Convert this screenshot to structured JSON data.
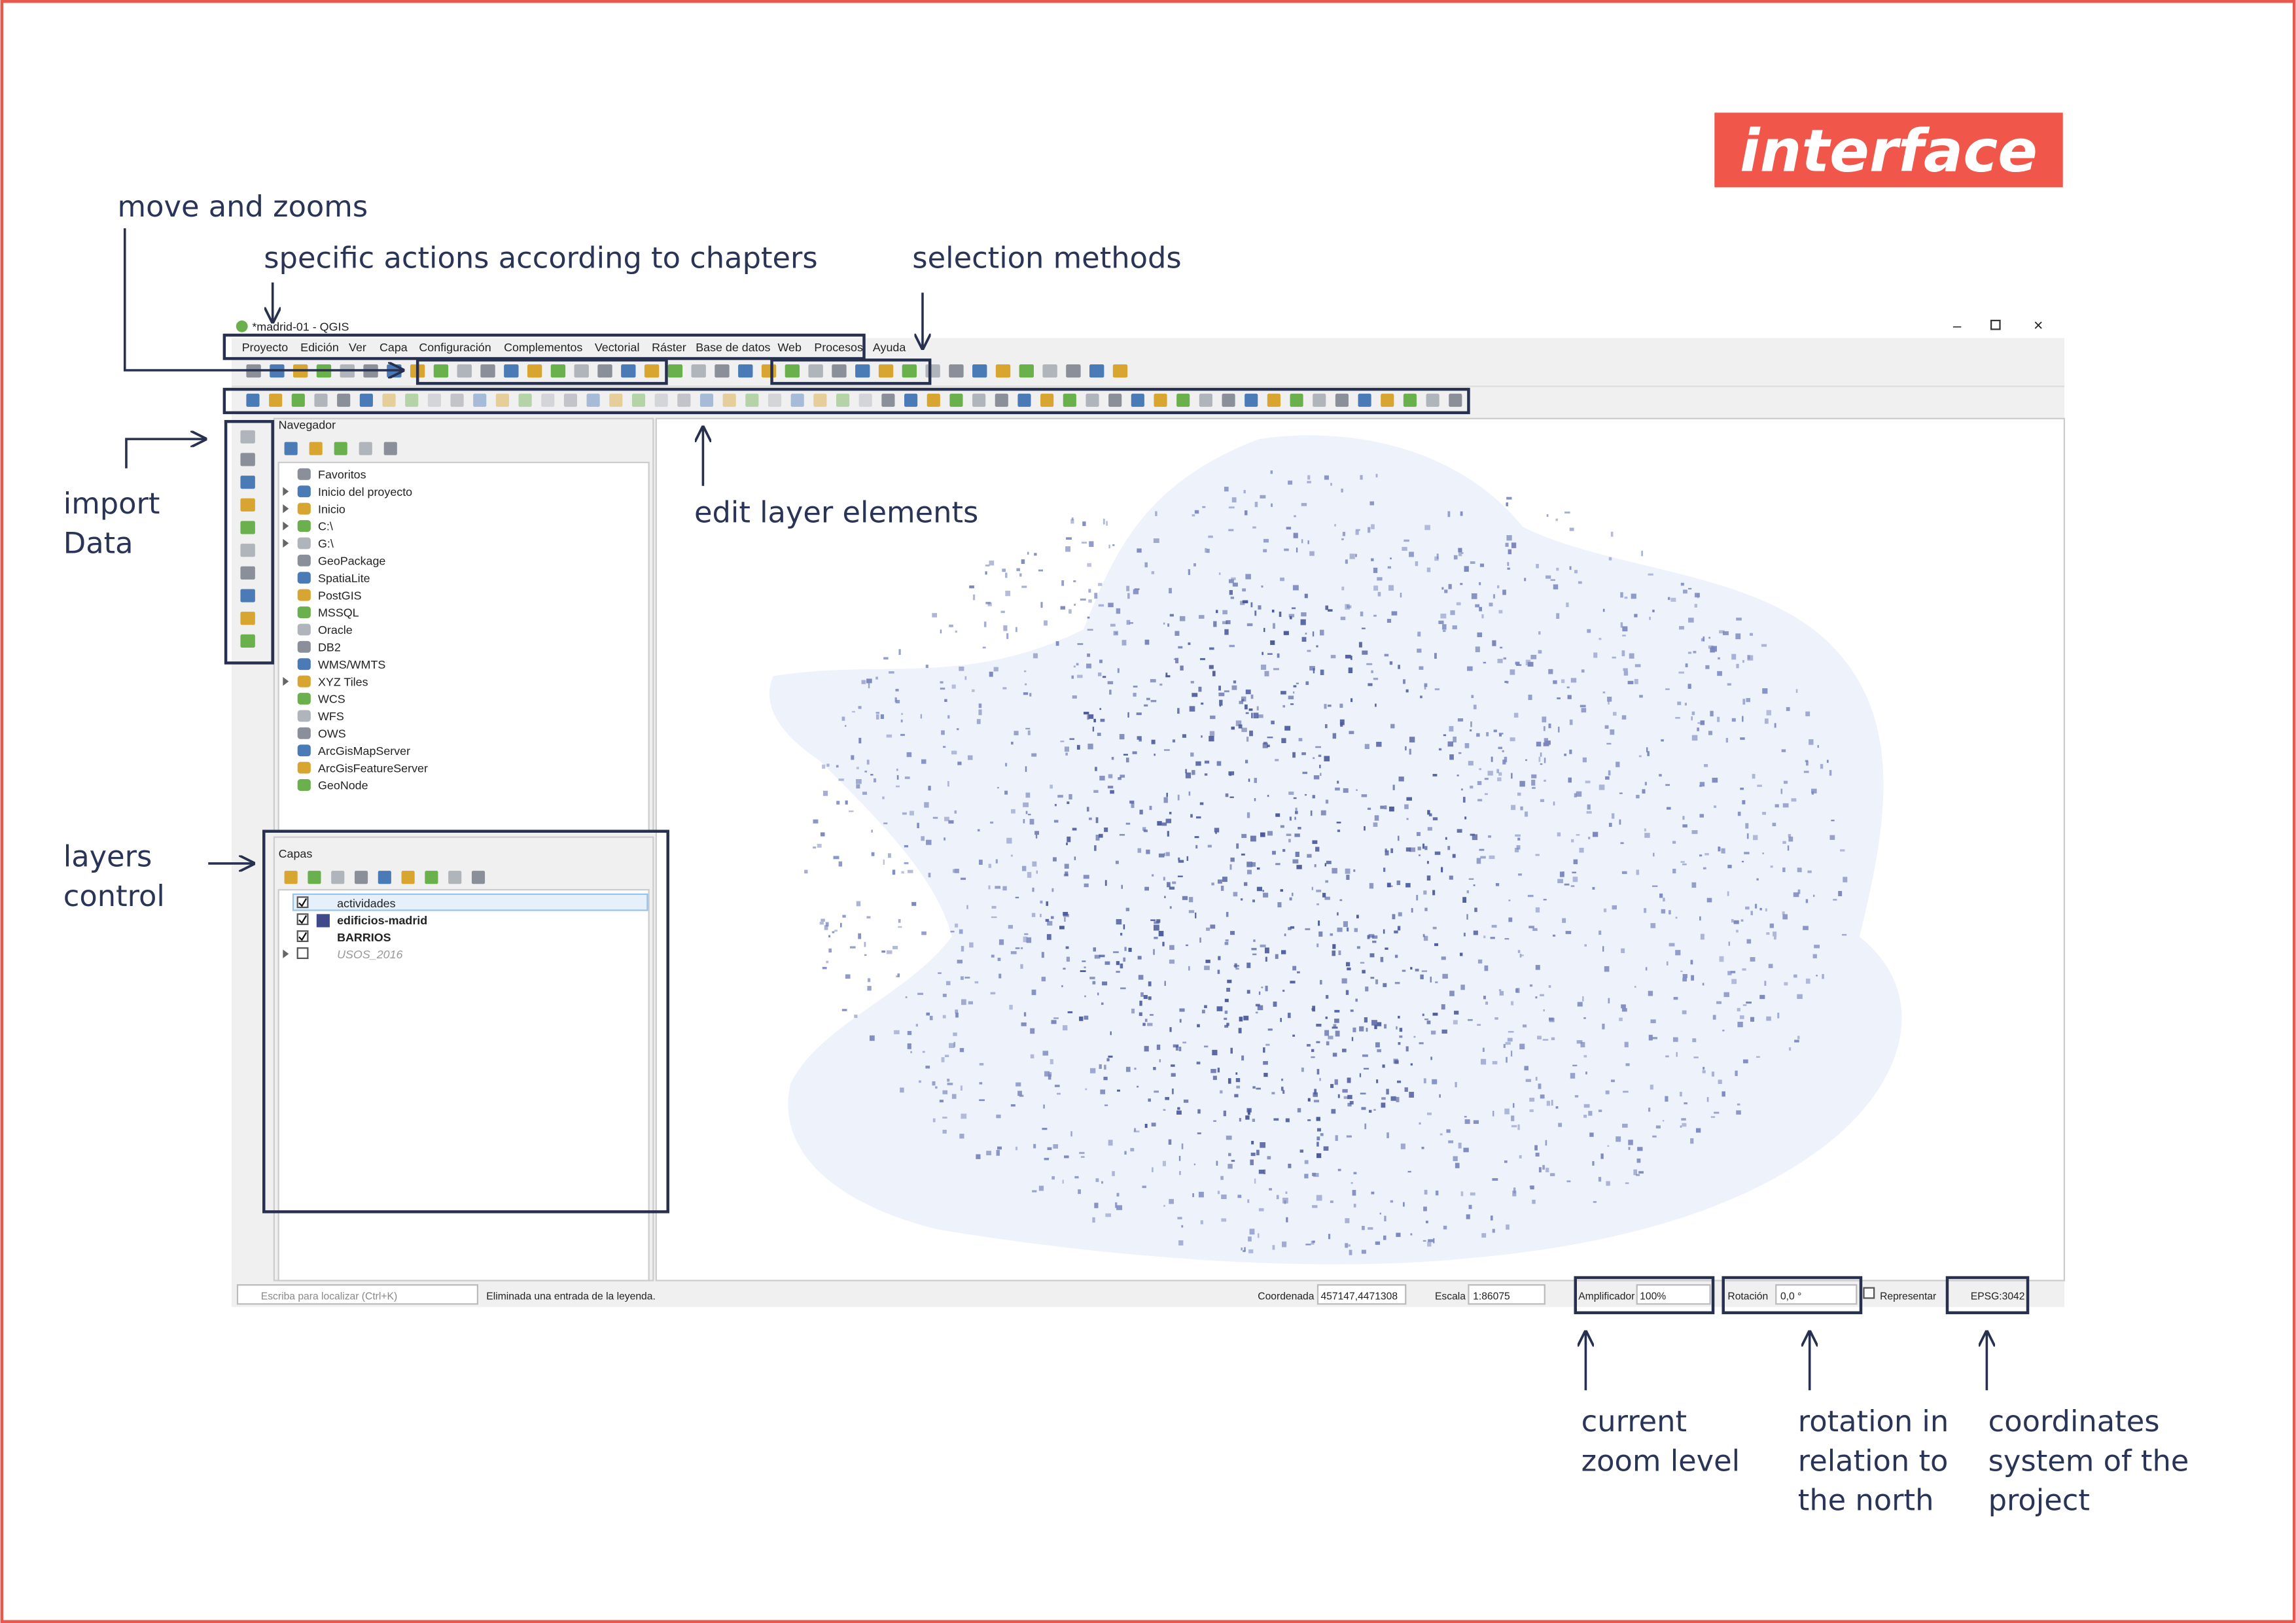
{
  "badge": "interface",
  "annotations": {
    "move_zoom": "move and zooms",
    "specific": "specific actions according to chapters",
    "selection": "selection methods",
    "import": [
      "import",
      "Data"
    ],
    "edit": "edit layer elements",
    "layers": [
      "layers",
      "control"
    ],
    "zoom_level": [
      "current",
      "zoom level"
    ],
    "rotation": [
      "rotation in",
      "relation to",
      "the north"
    ],
    "crs": [
      "coordinates",
      "system of the",
      "project"
    ]
  },
  "window": {
    "title": "*madrid-01 - QGIS",
    "menu": [
      "Proyecto",
      "Edición",
      "Ver",
      "Capa",
      "Configuración",
      "Complementos",
      "Vectorial",
      "Ráster",
      "Base de datos",
      "Web",
      "Procesos",
      "Ayuda"
    ]
  },
  "browser": {
    "title": "Navegador",
    "items": [
      "Favoritos",
      "Inicio del proyecto",
      "Inicio",
      "C:\\",
      "G:\\",
      "GeoPackage",
      "SpatiaLite",
      "PostGIS",
      "MSSQL",
      "Oracle",
      "DB2",
      "WMS/WMTS",
      "XYZ Tiles",
      "WCS",
      "WFS",
      "OWS",
      "ArcGisMapServer",
      "ArcGisFeatureServer",
      "GeoNode"
    ]
  },
  "layers": {
    "title": "Capas",
    "items": [
      "actividades",
      "edificios-madrid",
      "BARRIOS",
      "USOS_2016"
    ]
  },
  "statusbar": {
    "search": "Escriba para localizar (Ctrl+K)",
    "message": "Eliminada una entrada de la leyenda.",
    "coord_label": "Coordenada",
    "coord": "457147,4471308",
    "scale_label": "Escala",
    "scale": "1:86075",
    "magnifier_label": "Amplificador",
    "magnifier": "100%",
    "rotation_label": "Rotación",
    "rotation": "0,0 °",
    "render": "Representar",
    "crs": "EPSG:3042"
  }
}
